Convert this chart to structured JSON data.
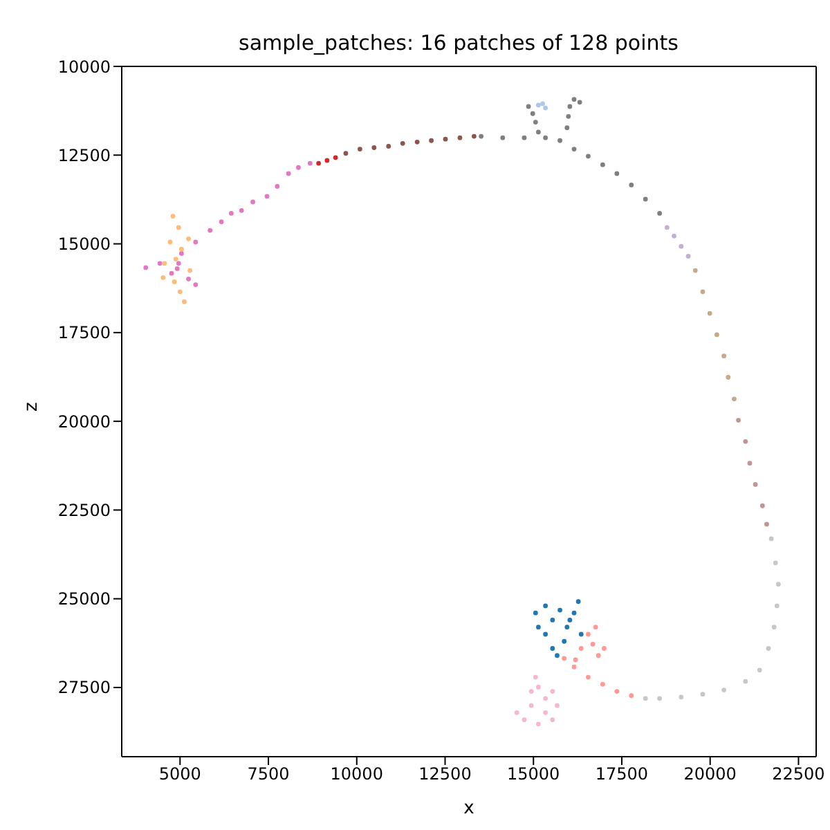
{
  "chart_data": {
    "type": "scatter",
    "title": "sample_patches: 16 patches of 128 points",
    "xlabel": "x",
    "ylabel": "z",
    "xlim": [
      3350,
      23000
    ],
    "ylim": [
      29450,
      10000
    ],
    "xticks": [
      5000,
      7500,
      10000,
      12500,
      15000,
      17500,
      20000,
      22500
    ],
    "yticks": [
      10000,
      12500,
      15000,
      17500,
      20000,
      22500,
      25000,
      27500
    ],
    "grid": false,
    "legend": false,
    "marker": "circle",
    "series": [
      {
        "color": "#e377c2",
        "x": [
          4030,
          4430,
          4920,
          5240,
          5440,
          5040,
          5440,
          5850,
          6170,
          6450,
          6740,
          7060,
          7460,
          7750,
          8070,
          8350,
          8680,
          4960,
          4760
        ],
        "values": [
          15670,
          15550,
          15700,
          15990,
          16150,
          15270,
          14950,
          14620,
          14380,
          14140,
          14060,
          13820,
          13660,
          13380,
          13020,
          12850,
          12730,
          15550,
          15830
        ]
      },
      {
        "color": "#ffbb78",
        "x": [
          4800,
          4960,
          4720,
          5040,
          4880,
          4520,
          4840,
          5000,
          5120,
          4560,
          5240,
          5280
        ],
        "values": [
          14220,
          14540,
          14950,
          15150,
          15430,
          15950,
          16070,
          16350,
          16630,
          15550,
          14860,
          15750
        ]
      },
      {
        "color": "#d62728",
        "x": [
          8920,
          9160,
          9400
        ],
        "values": [
          12730,
          12650,
          12570
        ]
      },
      {
        "color": "#8c564b",
        "x": [
          9690,
          10090,
          10490,
          10900,
          11300,
          11710,
          12110,
          12510,
          12920,
          13320
        ],
        "values": [
          12450,
          12330,
          12290,
          12250,
          12170,
          12130,
          12090,
          12050,
          12010,
          11970
        ]
      },
      {
        "color": "#7f7f7f",
        "x": [
          13520,
          14130,
          14740,
          15340,
          15750,
          16150,
          16550,
          16960,
          17360,
          17770,
          18170,
          18570,
          15950,
          15990,
          16030,
          16150,
          16310,
          14860,
          14980,
          15060,
          15140
        ],
        "values": [
          11970,
          12010,
          12010,
          12010,
          12090,
          12330,
          12530,
          12770,
          13020,
          13340,
          13740,
          14140,
          11730,
          11410,
          11130,
          10930,
          11010,
          11130,
          11330,
          11570,
          11850
        ]
      },
      {
        "color": "#aec7e8",
        "x": [
          15140,
          15260,
          15340
        ],
        "values": [
          11090,
          11050,
          11170
        ]
      },
      {
        "color": "#c5b0d5",
        "x": [
          18780,
          18980,
          19180,
          19380
        ],
        "values": [
          14540,
          14780,
          15070,
          15350
        ]
      },
      {
        "color": "#c5a98a",
        "x": [
          19580,
          19790,
          19990,
          20190,
          20390,
          20510,
          20680
        ],
        "values": [
          15750,
          16350,
          16960,
          17560,
          18160,
          18760,
          19370
        ]
      },
      {
        "color": "#c49494",
        "x": [
          20800,
          21000,
          21120,
          21280,
          21480,
          21600
        ],
        "values": [
          19970,
          20570,
          21180,
          21780,
          22380,
          22900
        ]
      },
      {
        "color": "#c7c7c7",
        "x": [
          21730,
          21850,
          21930,
          21890,
          21810,
          21650,
          21400,
          21000,
          20390,
          19790,
          19180,
          18570,
          18170
        ],
        "values": [
          23310,
          23990,
          24590,
          25200,
          25800,
          26400,
          27010,
          27330,
          27570,
          27690,
          27770,
          27810,
          27810
        ]
      },
      {
        "color": "#ff9896",
        "x": [
          17770,
          17360,
          16960,
          16550,
          16150,
          15870,
          16350,
          16550,
          16760,
          16680,
          17000,
          16190,
          16840
        ],
        "values": [
          27730,
          27610,
          27410,
          27210,
          26920,
          26680,
          26400,
          26000,
          25800,
          26280,
          26400,
          26720,
          26600
        ]
      },
      {
        "color": "#1f77b4",
        "x": [
          15060,
          15340,
          15540,
          15750,
          15950,
          16150,
          16270,
          15340,
          15540,
          15140,
          15870,
          16350,
          15670,
          16030
        ],
        "values": [
          25400,
          25200,
          25600,
          25320,
          25800,
          25400,
          25080,
          26000,
          26400,
          25800,
          26200,
          26000,
          26600,
          25600
        ]
      },
      {
        "color": "#f7b6d2",
        "x": [
          15060,
          15140,
          15340,
          14940,
          14530,
          14740,
          15140,
          15540,
          15670,
          15340,
          14940,
          15540
        ],
        "values": [
          27210,
          27490,
          27810,
          28010,
          28210,
          28410,
          28530,
          28410,
          28010,
          28210,
          27610,
          27610
        ]
      }
    ]
  }
}
